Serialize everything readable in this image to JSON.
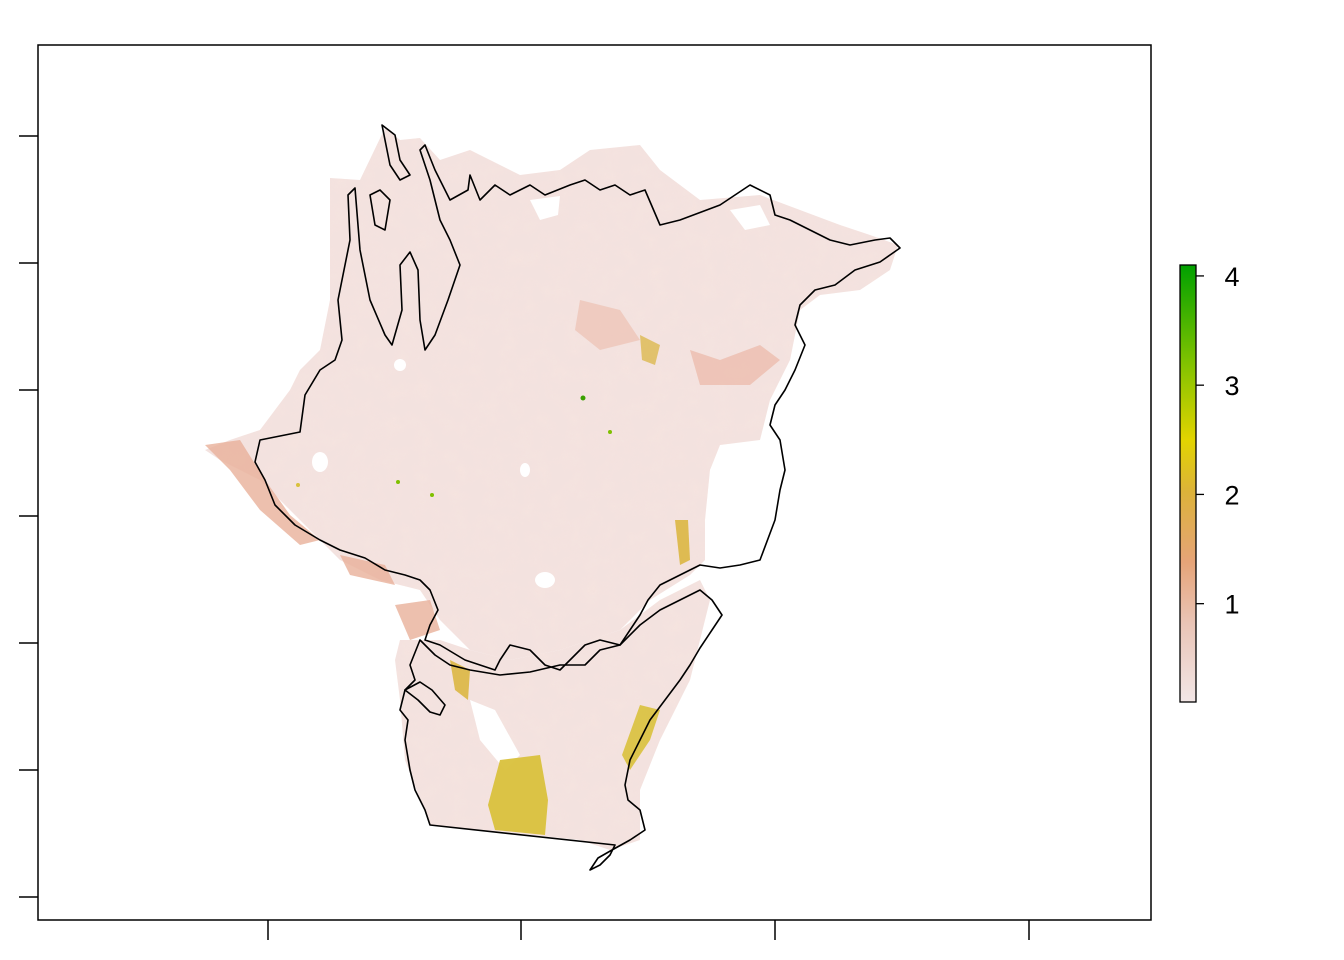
{
  "map": {
    "title": "",
    "x_tick_count": 4,
    "y_tick_count": 7,
    "tick_labels_shown": false,
    "legend": {
      "labels": [
        "1",
        "2",
        "3",
        "4"
      ],
      "min": 0.1,
      "max": 4.1,
      "colors": [
        "#f2e6e6",
        "#e8c3b4",
        "#e6a070",
        "#d9b43a",
        "#e3d400",
        "#7fc000",
        "#00a000"
      ],
      "placement": "right"
    },
    "colors": {
      "background_raster": "#f3e2df",
      "raster_light": "#f5f0f0",
      "raster_salmon": "#ebb8a6",
      "hotspot_yellow": "#d9c13c",
      "boundary_line": "#000000"
    }
  }
}
